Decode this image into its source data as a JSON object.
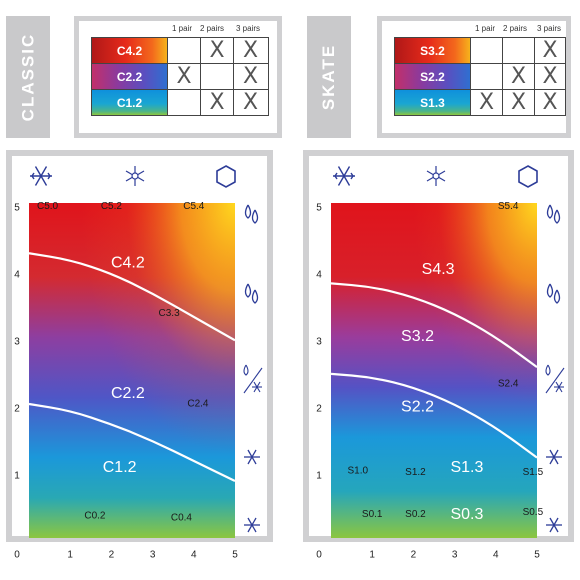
{
  "columns": [
    "1 pair",
    "2 pairs",
    "3 pairs"
  ],
  "classic": {
    "title": "CLASSIC",
    "waxes": [
      {
        "name": "C4.2",
        "marks": [
          "",
          "X",
          "X"
        ]
      },
      {
        "name": "C2.2",
        "marks": [
          "X",
          "",
          "X"
        ]
      },
      {
        "name": "C1.2",
        "marks": [
          "",
          "X",
          "X"
        ]
      }
    ]
  },
  "skate": {
    "title": "SKATE",
    "waxes": [
      {
        "name": "S3.2",
        "marks": [
          "",
          "",
          "X"
        ]
      },
      {
        "name": "S2.2",
        "marks": [
          "",
          "X",
          "X"
        ]
      },
      {
        "name": "S1.3",
        "marks": [
          "X",
          "X",
          "X"
        ]
      }
    ]
  },
  "top_icons": [
    "snowflake-icon",
    "snowflake-outline-icon",
    "hexagon-icon"
  ],
  "side_icons": [
    "double-drop-icon",
    "double-drop-outline-icon",
    "drop-over-snowflake-icon",
    "sparkle-snowflake-icon",
    "snowflake-icon"
  ],
  "colors": {
    "frame": "#d0d0d2",
    "side_label": "#c9c9cb",
    "icon": "#2d3c98"
  },
  "chart_data": [
    {
      "type": "heatmap",
      "name": "classic",
      "xlim": [
        0,
        5
      ],
      "ylim": [
        0,
        5
      ],
      "x_ticks": [
        "0",
        "1",
        "2",
        "3",
        "4",
        "5"
      ],
      "y_ticks": [
        "0",
        "1",
        "2",
        "3",
        "4",
        "5"
      ],
      "zones": [
        {
          "label": "C4.2",
          "x": 2.4,
          "y": 4.1
        },
        {
          "label": "C2.2",
          "x": 2.4,
          "y": 2.15
        },
        {
          "label": "C1.2",
          "x": 2.2,
          "y": 1.05
        }
      ],
      "products": [
        {
          "label": "C5.0",
          "x": 0.45,
          "y": 4.95
        },
        {
          "label": "C5.2",
          "x": 2.0,
          "y": 4.95
        },
        {
          "label": "C5.4",
          "x": 4.0,
          "y": 4.95
        },
        {
          "label": "C3.3",
          "x": 3.4,
          "y": 3.35
        },
        {
          "label": "C2.4",
          "x": 4.1,
          "y": 2.0
        },
        {
          "label": "C0.2",
          "x": 1.6,
          "y": 0.33
        },
        {
          "label": "C0.4",
          "x": 3.7,
          "y": 0.3
        }
      ],
      "boundaries": [
        [
          [
            0,
            4.25
          ],
          [
            1,
            4.15
          ],
          [
            2,
            3.95
          ],
          [
            3,
            3.65
          ],
          [
            4,
            3.3
          ],
          [
            5,
            2.95
          ]
        ],
        [
          [
            0,
            2.0
          ],
          [
            1,
            1.9
          ],
          [
            2,
            1.7
          ],
          [
            3,
            1.45
          ],
          [
            4,
            1.15
          ],
          [
            5,
            0.85
          ]
        ]
      ]
    },
    {
      "type": "heatmap",
      "name": "skate",
      "xlim": [
        0,
        5
      ],
      "ylim": [
        0,
        5
      ],
      "x_ticks": [
        "0",
        "1",
        "2",
        "3",
        "4",
        "5"
      ],
      "y_ticks": [
        "0",
        "1",
        "2",
        "3",
        "4",
        "5"
      ],
      "zones": [
        {
          "label": "S4.3",
          "x": 2.6,
          "y": 4.0
        },
        {
          "label": "S3.2",
          "x": 2.1,
          "y": 3.0
        },
        {
          "label": "S2.2",
          "x": 2.1,
          "y": 1.95
        },
        {
          "label": "S1.3",
          "x": 3.3,
          "y": 1.05
        },
        {
          "label": "S0.3",
          "x": 3.3,
          "y": 0.35
        }
      ],
      "products": [
        {
          "label": "S5.4",
          "x": 4.3,
          "y": 4.95
        },
        {
          "label": "S2.4",
          "x": 4.3,
          "y": 2.3
        },
        {
          "label": "S1.0",
          "x": 0.65,
          "y": 1.0
        },
        {
          "label": "S1.2",
          "x": 2.05,
          "y": 0.98
        },
        {
          "label": "S1.5",
          "x": 4.9,
          "y": 0.98
        },
        {
          "label": "S0.1",
          "x": 1.0,
          "y": 0.35
        },
        {
          "label": "S0.2",
          "x": 2.05,
          "y": 0.35
        },
        {
          "label": "S0.5",
          "x": 4.9,
          "y": 0.38
        }
      ],
      "boundaries": [
        [
          [
            0,
            3.8
          ],
          [
            1,
            3.75
          ],
          [
            2,
            3.6
          ],
          [
            3,
            3.35
          ],
          [
            4,
            3.0
          ],
          [
            5,
            2.55
          ]
        ],
        [
          [
            0,
            2.45
          ],
          [
            1,
            2.4
          ],
          [
            2,
            2.25
          ],
          [
            3,
            2.0
          ],
          [
            4,
            1.65
          ],
          [
            5,
            1.2
          ]
        ]
      ]
    }
  ]
}
